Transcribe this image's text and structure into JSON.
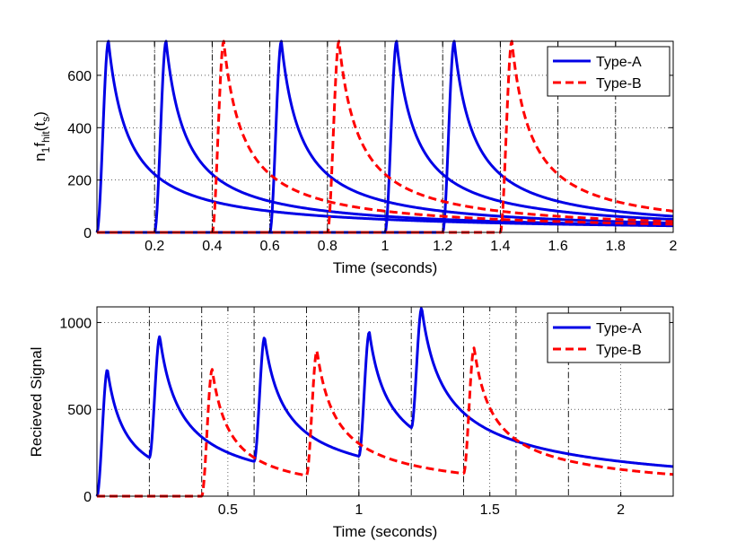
{
  "chart_data": [
    {
      "type": "line",
      "xlabel": "Time (seconds)",
      "ylabel_parts": {
        "n": "n",
        "s1": "1",
        "f": "f",
        "hit": "hit",
        "t": "(t",
        "s2": "s",
        "close": ")"
      },
      "xlim": [
        0,
        2
      ],
      "ylim": [
        0,
        730
      ],
      "xticks": [
        0.2,
        0.4,
        0.6,
        0.8,
        1,
        1.2,
        1.4,
        1.6,
        1.8,
        2
      ],
      "xtick_labels": [
        "0.2",
        "0.4",
        "0.6",
        "0.8",
        "1",
        "1.2",
        "1.4",
        "1.6",
        "1.8",
        "2"
      ],
      "yticks": [
        0,
        200,
        400,
        600
      ],
      "ytick_labels": [
        "0",
        "200",
        "400",
        "600"
      ],
      "grid": "dotted",
      "legend_position": "top-right",
      "vlines": [
        0.2,
        0.4,
        0.6,
        0.8,
        1.0,
        1.2,
        1.4,
        1.6,
        1.8
      ],
      "pulse_shape": {
        "peak": 730,
        "rise_s": 0.04,
        "decay_note": ""
      },
      "series": [
        {
          "name": "Type-A",
          "color": "#0000e6",
          "style": "solid",
          "onsets": [
            0,
            0.2,
            0.6,
            1.0,
            1.2
          ]
        },
        {
          "name": "Type-B",
          "color": "#ff0000",
          "style": "dashed",
          "onsets": [
            0.4,
            0.8,
            1.4
          ]
        }
      ]
    },
    {
      "type": "line",
      "xlabel": "Time (seconds)",
      "ylabel": "Recieved Signal",
      "xlim": [
        0,
        2.2
      ],
      "ylim": [
        0,
        1090
      ],
      "xticks": [
        0.5,
        1,
        1.5,
        2
      ],
      "xtick_labels": [
        "0.5",
        "1",
        "1.5",
        "2"
      ],
      "yticks": [
        0,
        500,
        1000
      ],
      "ytick_labels": [
        "0",
        "500",
        "1000"
      ],
      "grid": "dotted",
      "legend_position": "top-right",
      "vlines": [
        0.2,
        0.4,
        0.6,
        0.8,
        1.0,
        1.2,
        1.4,
        1.6,
        1.8
      ],
      "series": [
        {
          "name": "Type-A",
          "color": "#0000e6",
          "style": "solid",
          "onsets": [
            0,
            0.2,
            0.6,
            1.0,
            1.2
          ]
        },
        {
          "name": "Type-B",
          "color": "#ff0000",
          "style": "dashed",
          "onsets": [
            0.4,
            0.8,
            1.4
          ]
        }
      ]
    }
  ]
}
